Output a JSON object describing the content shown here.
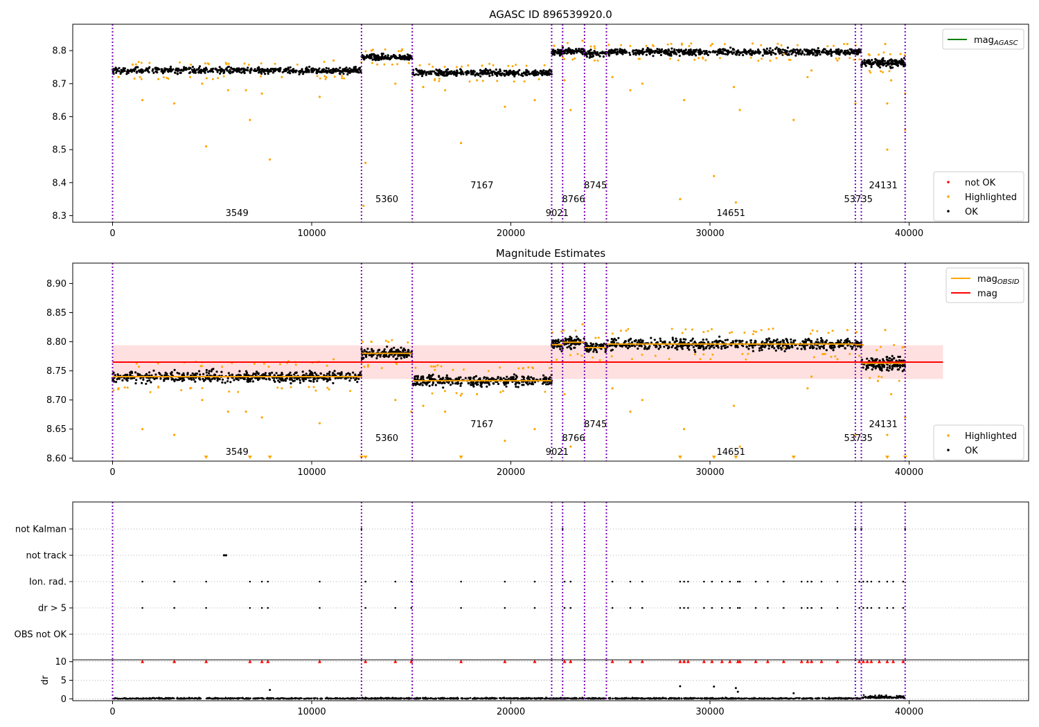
{
  "chart_data": [
    {
      "type": "scatter",
      "title": "AGASC ID 896539920.0",
      "xlim": [
        -2000,
        46000
      ],
      "ylim": [
        8.28,
        8.88
      ],
      "xticks": [
        0,
        10000,
        20000,
        30000,
        40000
      ],
      "yticks": [
        8.3,
        8.4,
        8.5,
        8.6,
        8.7,
        8.8
      ],
      "legend_upper": [
        {
          "label": "mag",
          "sub": "AGASC",
          "color": "#008000",
          "kind": "line"
        }
      ],
      "legend_lower": [
        {
          "label": "not OK",
          "color": "#ff0000",
          "kind": "dot"
        },
        {
          "label": "Highlighted",
          "color": "#ffa500",
          "kind": "dot"
        },
        {
          "label": "OK",
          "color": "#000000",
          "kind": "dot"
        }
      ],
      "legend_upper_position": "top-right",
      "legend_lower_position": "lower-right"
    },
    {
      "type": "scatter",
      "title": "Magnitude Estimates",
      "xlim": [
        -2000,
        46000
      ],
      "ylim": [
        8.595,
        8.935
      ],
      "xticks": [
        0,
        10000,
        20000,
        30000,
        40000
      ],
      "yticks": [
        8.6,
        8.65,
        8.7,
        8.75,
        8.8,
        8.85,
        8.9
      ],
      "overall_mag": 8.765,
      "overall_band": [
        8.736,
        8.794
      ],
      "band_x": [
        0,
        41700
      ],
      "legend_upper": [
        {
          "label": "mag",
          "sub": "OBSID",
          "color": "#ffa500",
          "kind": "line"
        },
        {
          "label": "mag",
          "sub": "",
          "color": "#ff0000",
          "kind": "line"
        }
      ],
      "legend_lower": [
        {
          "label": "Highlighted",
          "color": "#ffa500",
          "kind": "dot"
        },
        {
          "label": "OK",
          "color": "#000000",
          "kind": "dot"
        }
      ],
      "legend_upper_position": "top-right",
      "legend_lower_position": "lower-right"
    },
    {
      "type": "scatter",
      "title": "",
      "xlim": [
        -2000,
        46000
      ],
      "categories": [
        "not Kalman",
        "not track",
        "Ion. rad.",
        "dr > 5",
        "OBS not OK"
      ],
      "flag_points": {
        "not Kalman": [
          12500,
          22600,
          37300,
          37600,
          39800
        ],
        "not track": [
          5600,
          5700
        ],
        "Ion. rad.": [
          1500,
          3100,
          4700,
          6900,
          7500,
          7800,
          10400,
          12700,
          14200,
          15000,
          17500,
          19700,
          21200,
          22700,
          23000,
          25100,
          26000,
          26600,
          28500,
          28700,
          28900,
          29700,
          30100,
          30600,
          31000,
          31400,
          31500,
          32300,
          32900,
          33700,
          34600,
          34900,
          35100,
          35600,
          36400,
          37500,
          37700,
          37900,
          38100,
          38500,
          38900,
          39200,
          39700
        ]
      }
    },
    {
      "type": "scatter",
      "title": "",
      "xlim": [
        -2000,
        46000
      ],
      "ylim": [
        -0.5,
        10.5
      ],
      "ylabel": "dr",
      "xticks": [
        0,
        10000,
        20000,
        30000,
        40000
      ],
      "yticks": [
        0,
        5,
        10
      ],
      "outlier_points": [
        [
          7900,
          2.4
        ],
        [
          28500,
          3.4
        ],
        [
          30200,
          3.3
        ],
        [
          31300,
          2.9
        ],
        [
          31400,
          1.9
        ],
        [
          34200,
          1.5
        ]
      ]
    }
  ],
  "obsids": [
    {
      "id": "3549",
      "start": 0,
      "end": 12500,
      "mag": 8.74,
      "spread": 0.012,
      "n": 520
    },
    {
      "id": "5360",
      "start": 12500,
      "end": 15050,
      "mag": 8.78,
      "spread": 0.011,
      "n": 160
    },
    {
      "id": "7167",
      "start": 15050,
      "end": 22050,
      "mag": 8.733,
      "spread": 0.012,
      "n": 330
    },
    {
      "id": "9021",
      "start": 22050,
      "end": 22600,
      "mag": 8.795,
      "spread": 0.012,
      "n": 40
    },
    {
      "id": "8766",
      "start": 22600,
      "end": 23700,
      "mag": 8.799,
      "spread": 0.012,
      "n": 60
    },
    {
      "id": "8745",
      "start": 23700,
      "end": 24800,
      "mag": 8.79,
      "spread": 0.011,
      "n": 60
    },
    {
      "id": "14651",
      "start": 24800,
      "end": 37300,
      "mag": 8.796,
      "spread": 0.012,
      "n": 560
    },
    {
      "id": "53735",
      "start": 37300,
      "end": 37600,
      "mag": 8.795,
      "spread": 0.012,
      "n": 25
    },
    {
      "id": "24131",
      "start": 37600,
      "end": 39800,
      "mag": 8.763,
      "spread": 0.016,
      "n": 150
    }
  ],
  "obsid_boundaries": [
    0,
    12500,
    15050,
    22050,
    22600,
    23700,
    24800,
    37300,
    37600,
    39800
  ],
  "highlighted_points": [
    [
      300,
      8.72
    ],
    [
      1500,
      8.65
    ],
    [
      3100,
      8.64
    ],
    [
      3900,
      8.72
    ],
    [
      4500,
      8.7
    ],
    [
      4700,
      8.51
    ],
    [
      5800,
      8.68
    ],
    [
      6700,
      8.68
    ],
    [
      6900,
      8.59
    ],
    [
      7500,
      8.67
    ],
    [
      7900,
      8.47
    ],
    [
      8500,
      8.72
    ],
    [
      10400,
      8.66
    ],
    [
      11100,
      8.77
    ],
    [
      12700,
      8.46
    ],
    [
      12600,
      8.33
    ],
    [
      13000,
      8.8
    ],
    [
      14200,
      8.7
    ],
    [
      15000,
      8.68
    ],
    [
      15600,
      8.69
    ],
    [
      16700,
      8.68
    ],
    [
      17500,
      8.52
    ],
    [
      18300,
      8.71
    ],
    [
      19700,
      8.63
    ],
    [
      21200,
      8.65
    ],
    [
      22700,
      8.71
    ],
    [
      23000,
      8.62
    ],
    [
      23600,
      8.83
    ],
    [
      25100,
      8.72
    ],
    [
      26000,
      8.68
    ],
    [
      26600,
      8.7
    ],
    [
      28500,
      8.35
    ],
    [
      28700,
      8.65
    ],
    [
      30200,
      8.42
    ],
    [
      31200,
      8.69
    ],
    [
      31500,
      8.62
    ],
    [
      31300,
      8.34
    ],
    [
      33700,
      8.79
    ],
    [
      34200,
      8.59
    ],
    [
      34900,
      8.72
    ],
    [
      35100,
      8.74
    ],
    [
      36400,
      8.77
    ],
    [
      37300,
      8.64
    ],
    [
      38900,
      8.5
    ],
    [
      38900,
      8.64
    ],
    [
      39100,
      8.71
    ],
    [
      39800,
      8.67
    ],
    [
      39800,
      8.56
    ],
    [
      38800,
      8.82
    ],
    [
      36900,
      8.82
    ]
  ],
  "arrow_points_x": [
    4700,
    6900,
    7900,
    12500,
    12700,
    17500,
    28500,
    30200,
    31300,
    34200,
    38900,
    39800
  ]
}
